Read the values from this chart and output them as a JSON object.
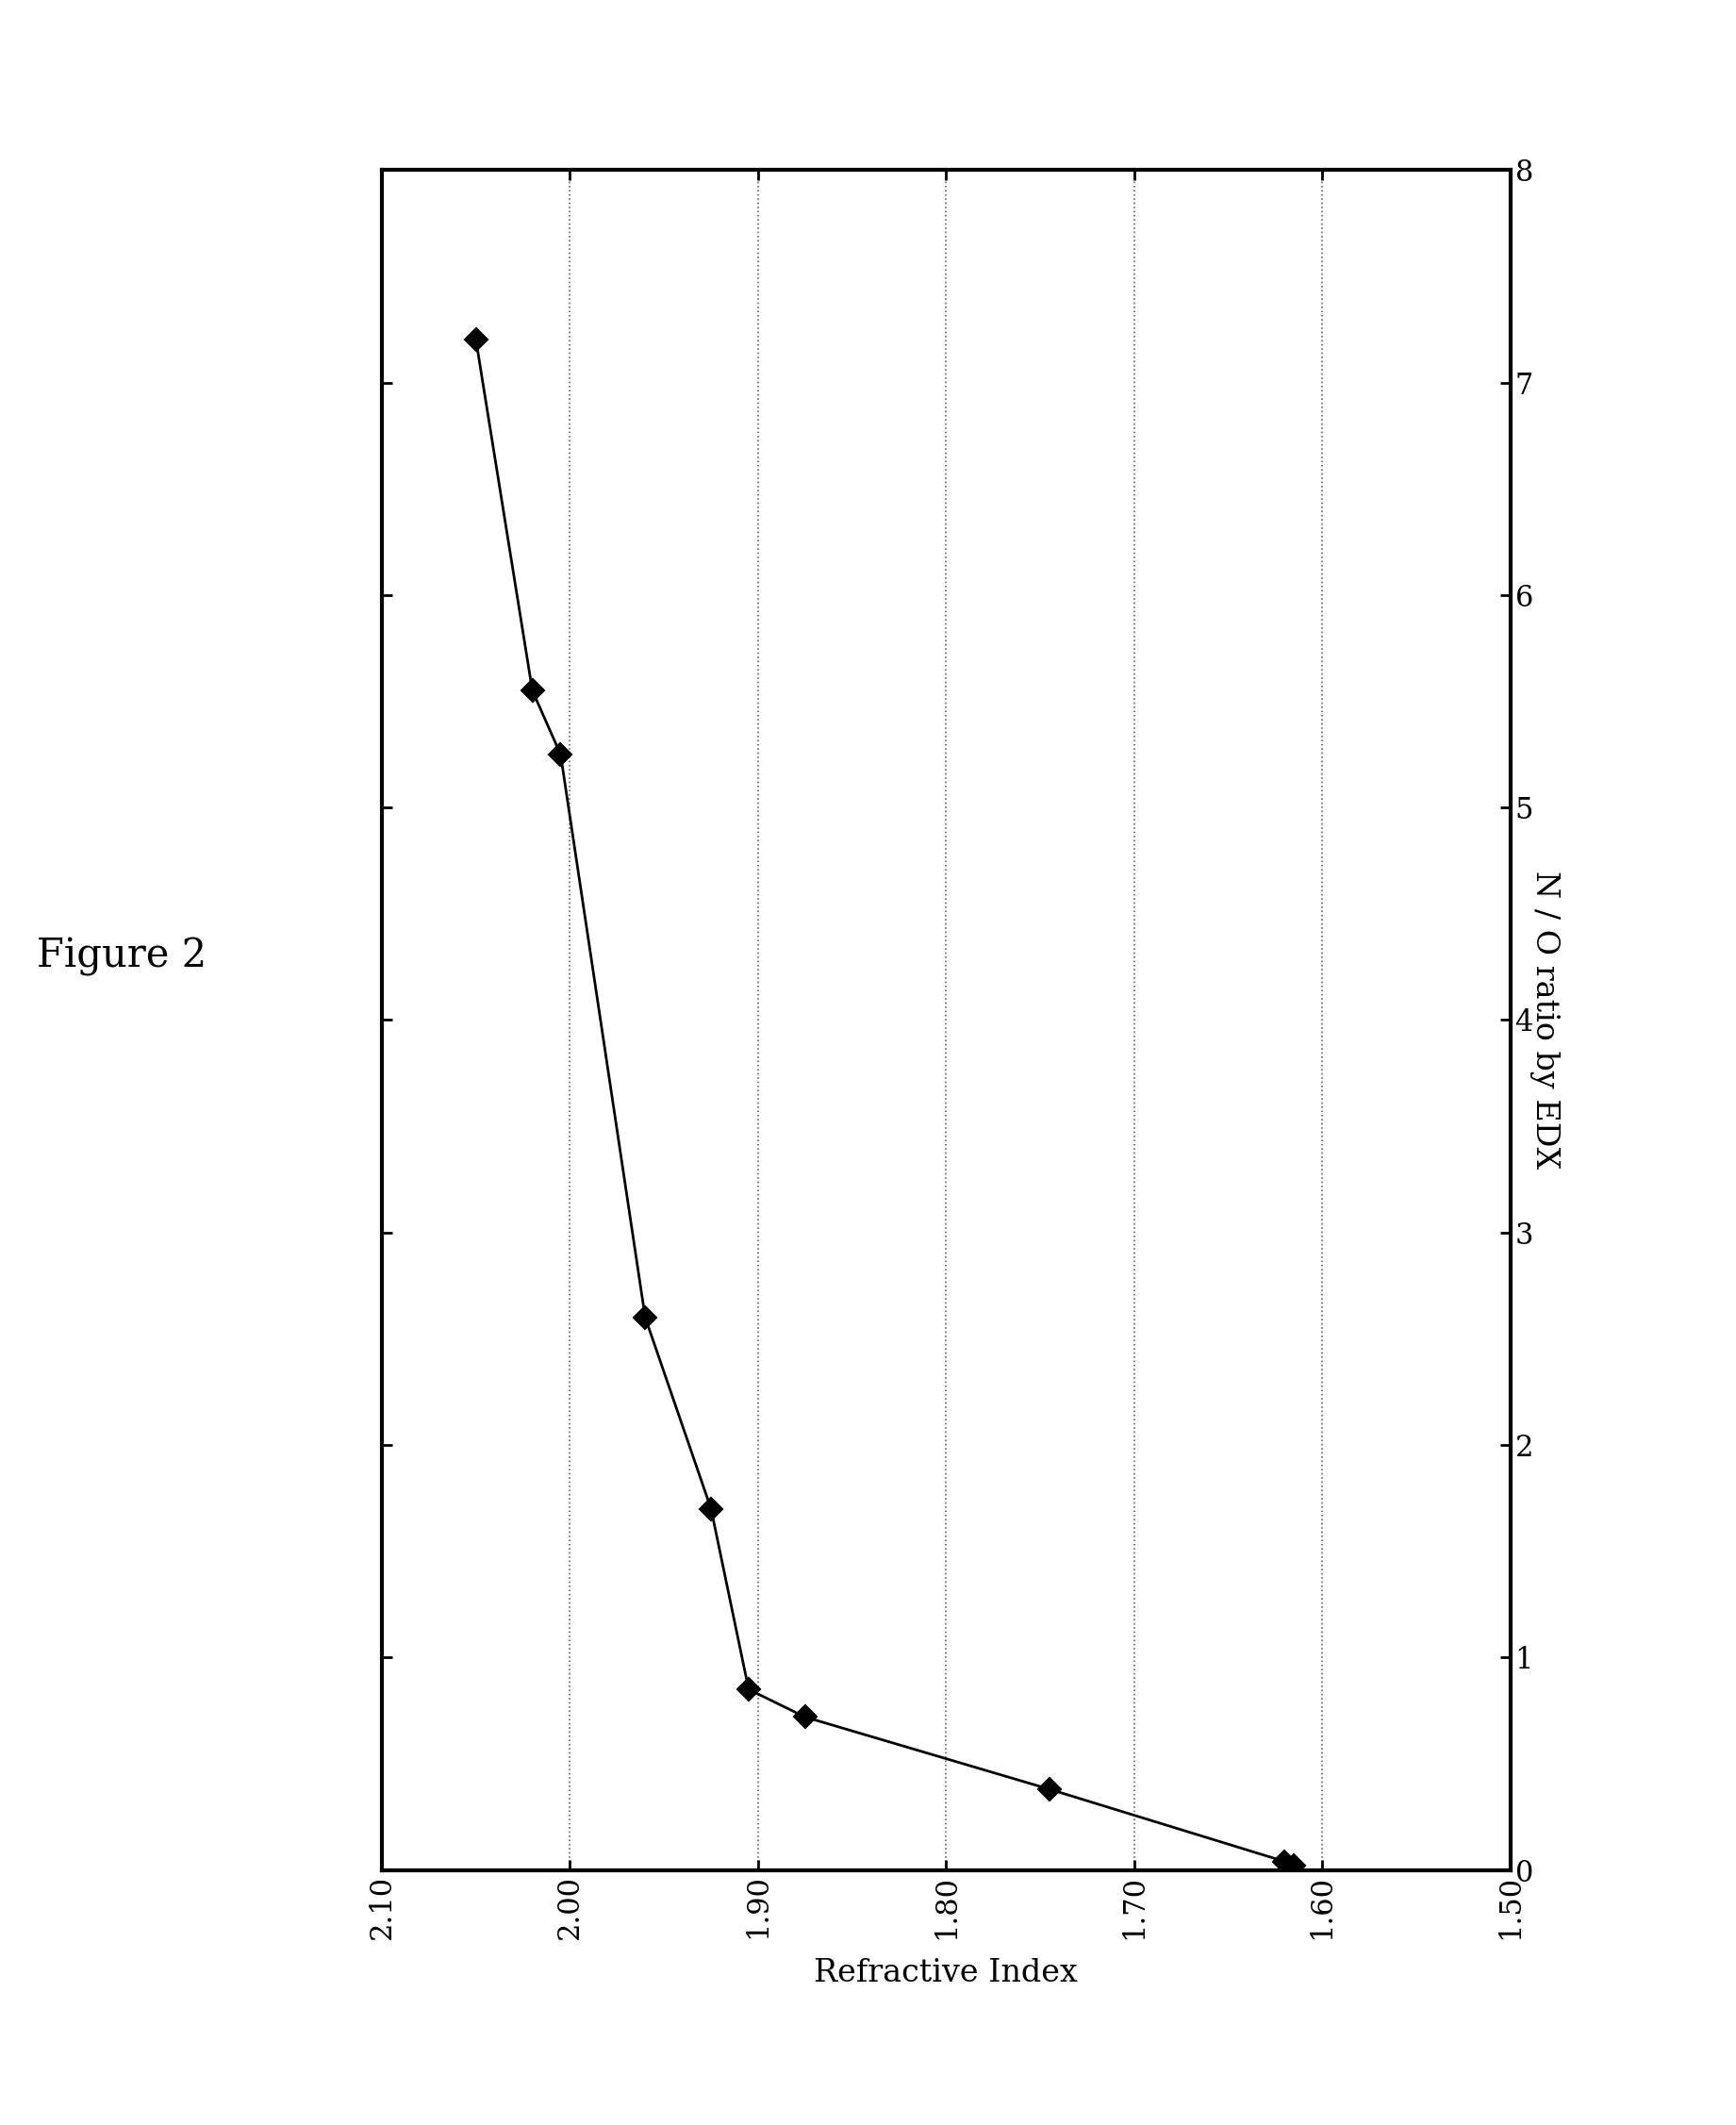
{
  "title": "Figure 2",
  "xlabel": "Refractive Index",
  "ylabel": "N / O ratio by EDX",
  "x_data": [
    2.05,
    2.02,
    2.005,
    1.96,
    1.925,
    1.905,
    1.875,
    1.745,
    1.62,
    1.615
  ],
  "y_data": [
    7.2,
    5.55,
    5.25,
    2.6,
    1.7,
    0.85,
    0.72,
    0.38,
    0.04,
    0.02
  ],
  "xlim_left": 2.1,
  "xlim_right": 1.5,
  "ylim_bottom": 0,
  "ylim_top": 8,
  "xticks": [
    2.1,
    2.0,
    1.9,
    1.8,
    1.7,
    1.6,
    1.5
  ],
  "yticks": [
    0,
    1,
    2,
    3,
    4,
    5,
    6,
    7,
    8
  ],
  "grid_x_lines": [
    2.0,
    1.9,
    1.8,
    1.7,
    1.6
  ],
  "line_color": "#000000",
  "marker_color": "#000000",
  "grid_color": "#666666",
  "background_color": "#ffffff",
  "title_fontsize": 30,
  "label_fontsize": 24,
  "tick_fontsize": 22,
  "spine_linewidth": 3.0,
  "line_linewidth": 2.0,
  "marker_size": 12
}
